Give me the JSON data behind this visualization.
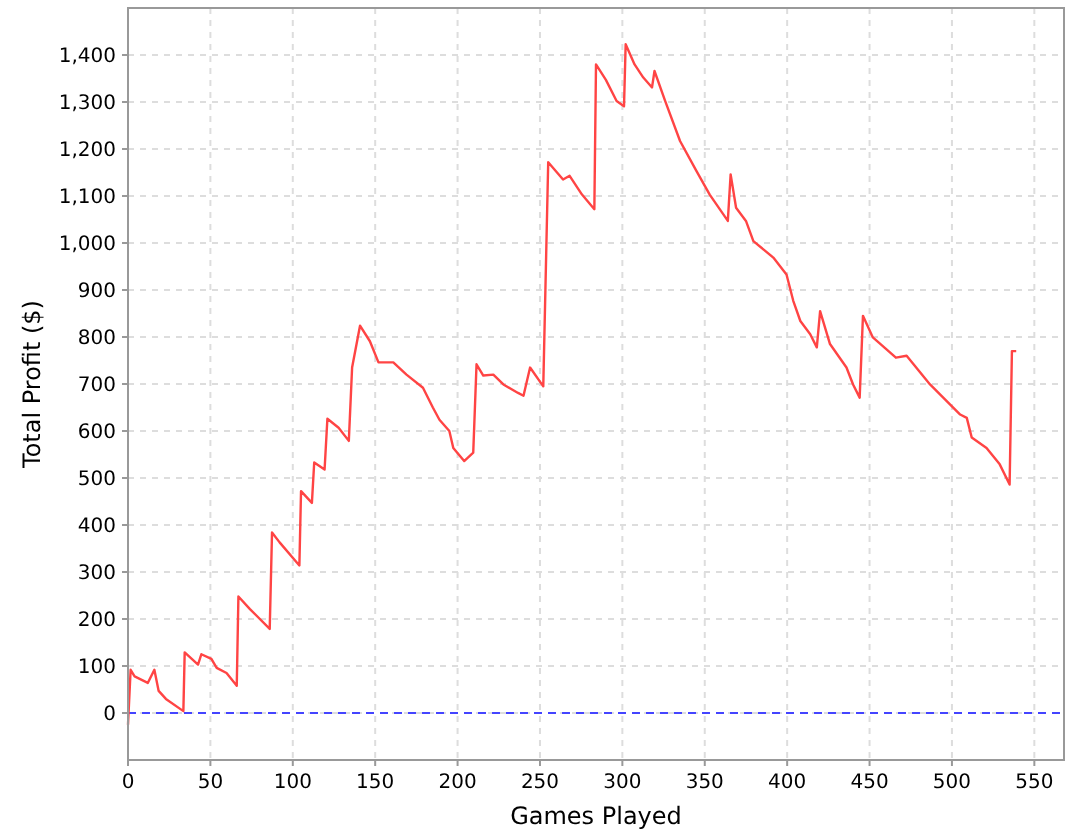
{
  "chart_data": {
    "type": "line",
    "xlabel": "Games Played",
    "ylabel": "Total Profit ($)",
    "xlim": [
      0,
      568
    ],
    "ylim": [
      -100,
      1500
    ],
    "xticks": [
      0,
      50,
      100,
      150,
      200,
      250,
      300,
      350,
      400,
      450,
      500,
      550
    ],
    "yticks": [
      0,
      100,
      200,
      300,
      400,
      500,
      600,
      700,
      800,
      900,
      {
        "value": 1000,
        "label": "1,000"
      },
      {
        "value": 1100,
        "label": "1,100"
      },
      {
        "value": 1200,
        "label": "1,200"
      },
      {
        "value": 1300,
        "label": "1,300"
      },
      {
        "value": 1400,
        "label": "1,400"
      }
    ],
    "grid": true,
    "marker": "none",
    "line_style": "solid",
    "ref_lines": [
      {
        "axis": "y",
        "value": 0,
        "color": "#4444ff",
        "line_style": "dashed"
      }
    ],
    "series": [
      {
        "color": "#ff4444",
        "x": [
          0,
          1.6,
          4,
          12,
          16,
          18.6,
          23,
          33.6,
          34.4,
          42.5,
          44.5,
          50.6,
          53.8,
          59.8,
          66,
          67,
          74,
          86,
          87.4,
          92,
          104,
          105,
          111.6,
          113,
          119.3,
          121,
          127.8,
          134,
          136,
          140.8,
          146.8,
          152,
          161,
          169,
          179,
          185,
          189,
          195,
          197.4,
          204,
          209.5,
          211.5,
          215.6,
          221.7,
          227.8,
          236.7,
          240,
          244,
          252,
          255,
          264,
          268,
          275.5,
          283,
          284,
          290,
          296.5,
          301,
          302,
          307.4,
          312.7,
          318,
          319.5,
          326,
          335,
          345,
          353,
          364,
          365.7,
          369,
          375,
          379.5,
          391.6,
          399.6,
          403.7,
          408,
          414,
          418,
          420,
          426,
          436,
          440,
          444,
          446,
          452,
          466,
          472.5,
          486.7,
          505,
          509,
          512,
          521,
          529,
          535,
          536.4,
          539
        ],
        "values": [
          -25,
          92,
          78,
          64,
          92,
          47,
          30,
          4,
          129,
          103,
          125,
          115,
          96,
          85,
          58,
          248,
          221,
          179,
          384,
          363,
          314,
          472,
          447,
          533,
          518,
          626,
          607,
          579,
          735,
          824,
          791,
          746,
          746,
          720,
          692,
          650,
          624,
          600,
          564,
          536,
          554,
          742,
          718,
          720,
          699,
          681,
          675,
          735,
          695,
          1172,
          1135,
          1143,
          1103,
          1072,
          1380,
          1347,
          1302,
          1291,
          1423,
          1380,
          1352,
          1331,
          1366,
          1302,
          1217,
          1153,
          1103,
          1047,
          1146,
          1075,
          1047,
          1004,
          969,
          933,
          877,
          834,
          806,
          778,
          855,
          785,
          735,
          699,
          671,
          845,
          799,
          756,
          760,
          699,
          635,
          628,
          586,
          564,
          529,
          486,
          770,
          770
        ]
      }
    ]
  }
}
